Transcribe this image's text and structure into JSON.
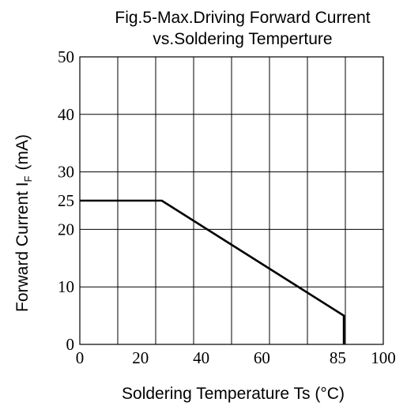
{
  "chart_data": {
    "type": "line",
    "title_line1": "Fig.5-Max.Driving Forward Current",
    "title_line2": "vs.Soldering Temperture",
    "xlabel": "Soldering Temperature Ts (°C)",
    "ylabel_main": "Forward Current   I",
    "ylabel_sub": "F",
    "ylabel_unit": "(mA)",
    "xlim": [
      0,
      100
    ],
    "ylim": [
      0,
      50
    ],
    "x_gridlines": [
      0,
      12.5,
      25,
      37.5,
      50,
      62.5,
      75,
      87.5,
      100
    ],
    "y_gridlines": [
      0,
      10,
      20,
      30,
      40,
      50
    ],
    "x_ticks": [
      {
        "value": 0,
        "label": "0"
      },
      {
        "value": 20,
        "label": "20"
      },
      {
        "value": 40,
        "label": "40"
      },
      {
        "value": 60,
        "label": "60"
      },
      {
        "value": 85,
        "label": "85"
      },
      {
        "value": 100,
        "label": "100"
      }
    ],
    "y_ticks": [
      {
        "value": 0,
        "label": "0"
      },
      {
        "value": 10,
        "label": "10"
      },
      {
        "value": 20,
        "label": "20"
      },
      {
        "value": 25,
        "label": "25"
      },
      {
        "value": 30,
        "label": "30"
      },
      {
        "value": 40,
        "label": "40"
      },
      {
        "value": 50,
        "label": "50"
      }
    ],
    "grid": true,
    "series": [
      {
        "color": "#000000",
        "points": [
          {
            "x": 0,
            "y": 25
          },
          {
            "x": 27,
            "y": 25
          },
          {
            "x": 87,
            "y": 5
          },
          {
            "x": 87,
            "y": 0
          }
        ]
      }
    ]
  }
}
